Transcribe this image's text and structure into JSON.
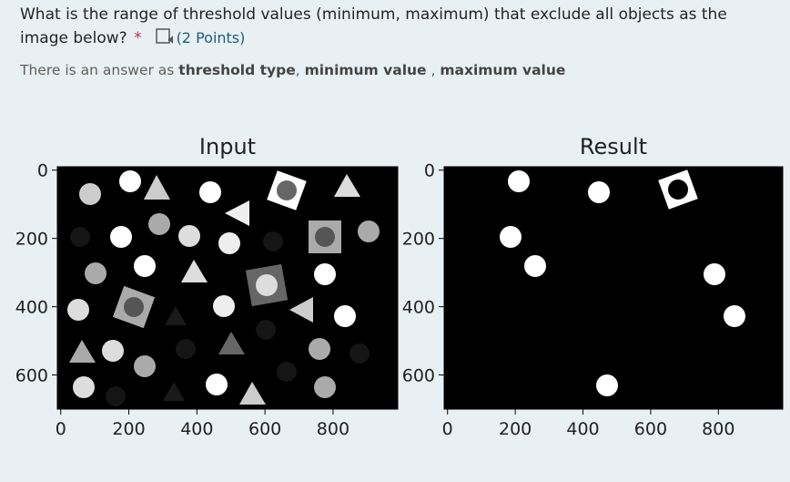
{
  "question": {
    "text": "What is the range of threshold values (minimum, maximum) that exclude all objects as the image below?",
    "required": "*",
    "points": "(2 Points)"
  },
  "instruction": [
    {
      "text": "There is an answer as "
    },
    {
      "text": "threshold type",
      "bold": true
    },
    {
      "text": ", "
    },
    {
      "text": "minimum value",
      "bold": true
    },
    {
      "text": " , "
    },
    {
      "text": "maximum value",
      "bold": true
    }
  ],
  "panels": [
    {
      "title": "Input",
      "xlim": [
        -10,
        990
      ],
      "ylim": [
        700,
        -10
      ],
      "xticks": [
        0,
        200,
        400,
        600,
        800
      ],
      "yticks": [
        0,
        200,
        400,
        600
      ]
    },
    {
      "title": "Result",
      "xlim": [
        -10,
        990
      ],
      "ylim": [
        700,
        -10
      ],
      "xticks": [
        0,
        200,
        400,
        600,
        800
      ],
      "yticks": [
        0,
        200,
        400,
        600
      ]
    }
  ]
}
